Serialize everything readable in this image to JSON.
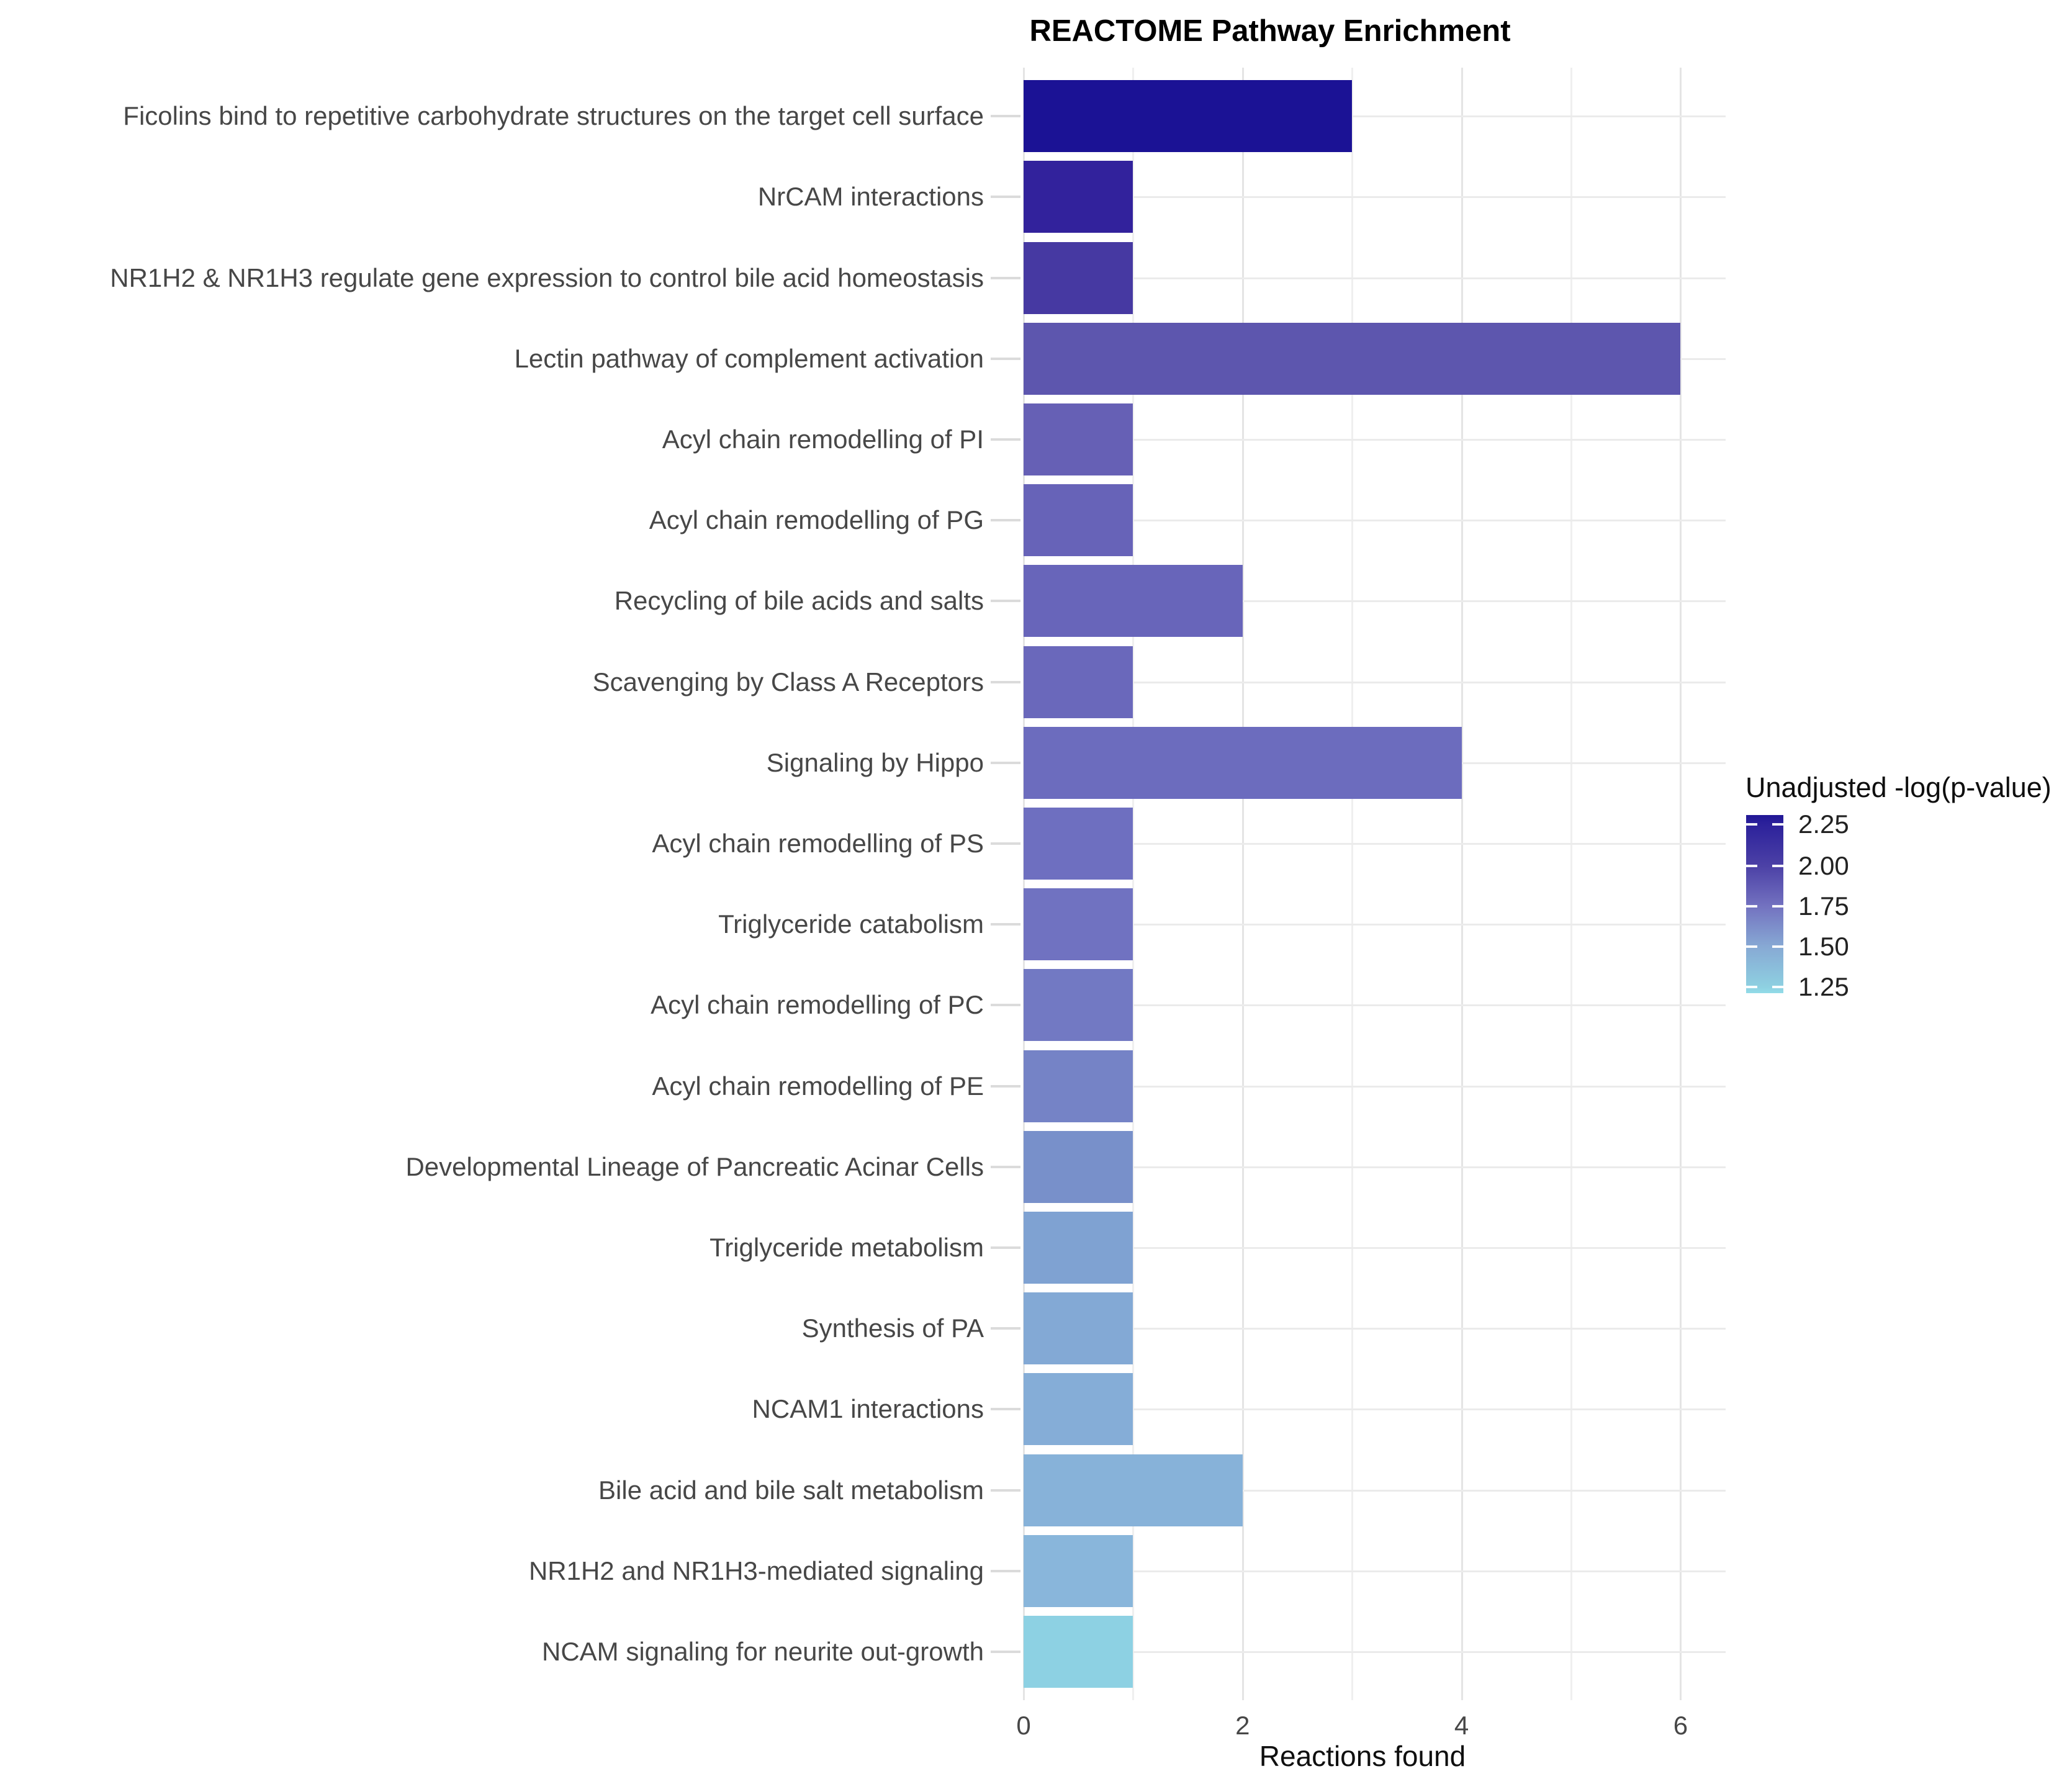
{
  "chart_data": {
    "type": "bar",
    "orientation": "horizontal",
    "title": "REACTOME Pathway Enrichment",
    "xlabel": "Reactions found",
    "ylabel": "",
    "xlim": [
      0,
      6.4
    ],
    "xticks": [
      "0",
      "2",
      "4",
      "6"
    ],
    "grid": true,
    "categories": [
      "Ficolins bind to repetitive carbohydrate structures on the target cell surface",
      "NrCAM interactions",
      "NR1H2 & NR1H3 regulate gene expression to control bile acid homeostasis",
      "Lectin pathway of complement activation",
      "Acyl chain remodelling of PI",
      "Acyl chain remodelling of PG",
      "Recycling of bile acids and salts",
      "Scavenging by Class A Receptors",
      "Signaling by Hippo",
      "Acyl chain remodelling of PS",
      "Triglyceride catabolism",
      "Acyl chain remodelling of PC",
      "Acyl chain remodelling of PE",
      "Developmental Lineage of Pancreatic Acinar Cells",
      "Triglyceride metabolism",
      "Synthesis of PA",
      "NCAM1 interactions",
      "Bile acid and bile salt metabolism",
      "NR1H2 and NR1H3-mediated signaling",
      "NCAM signaling for neurite out-growth"
    ],
    "values": [
      3,
      1,
      1,
      6,
      1,
      1,
      2,
      1,
      4,
      1,
      1,
      1,
      1,
      1,
      1,
      1,
      1,
      2,
      1,
      1
    ],
    "bar_colors": [
      "#1B1295",
      "#32229C",
      "#4639A2",
      "#5D56AE",
      "#6660B5",
      "#6763B8",
      "#6865BA",
      "#6A68BB",
      "#6C6CBE",
      "#6E6FC0",
      "#7072C1",
      "#7279C3",
      "#7583C6",
      "#7890CA",
      "#7FA2D2",
      "#83A9D5",
      "#85ADD7",
      "#87B2D9",
      "#89B6DB",
      "#8DD1E3"
    ],
    "legend": {
      "title": "Unadjusted -log(p-value)",
      "position": "right",
      "tick_labels": [
        "2.25",
        "2.00",
        "1.75",
        "1.50",
        "1.25"
      ],
      "gradient_stops": [
        {
          "pos": 0.0,
          "color": "#211796"
        },
        {
          "pos": 0.052,
          "color": "#2C219B"
        },
        {
          "pos": 0.286,
          "color": "#4C41A6"
        },
        {
          "pos": 0.512,
          "color": "#7372C0"
        },
        {
          "pos": 0.739,
          "color": "#87A9D4"
        },
        {
          "pos": 0.965,
          "color": "#8ED0E1"
        },
        {
          "pos": 1.0,
          "color": "#92DCE8"
        }
      ]
    },
    "colors": {
      "background": "#ffffff",
      "grid_major": "#e4e4e4",
      "grid_minor": "#efefef",
      "grid_row": "#ebebeb",
      "axis_text": "#474747",
      "title_text": "#000000"
    }
  }
}
